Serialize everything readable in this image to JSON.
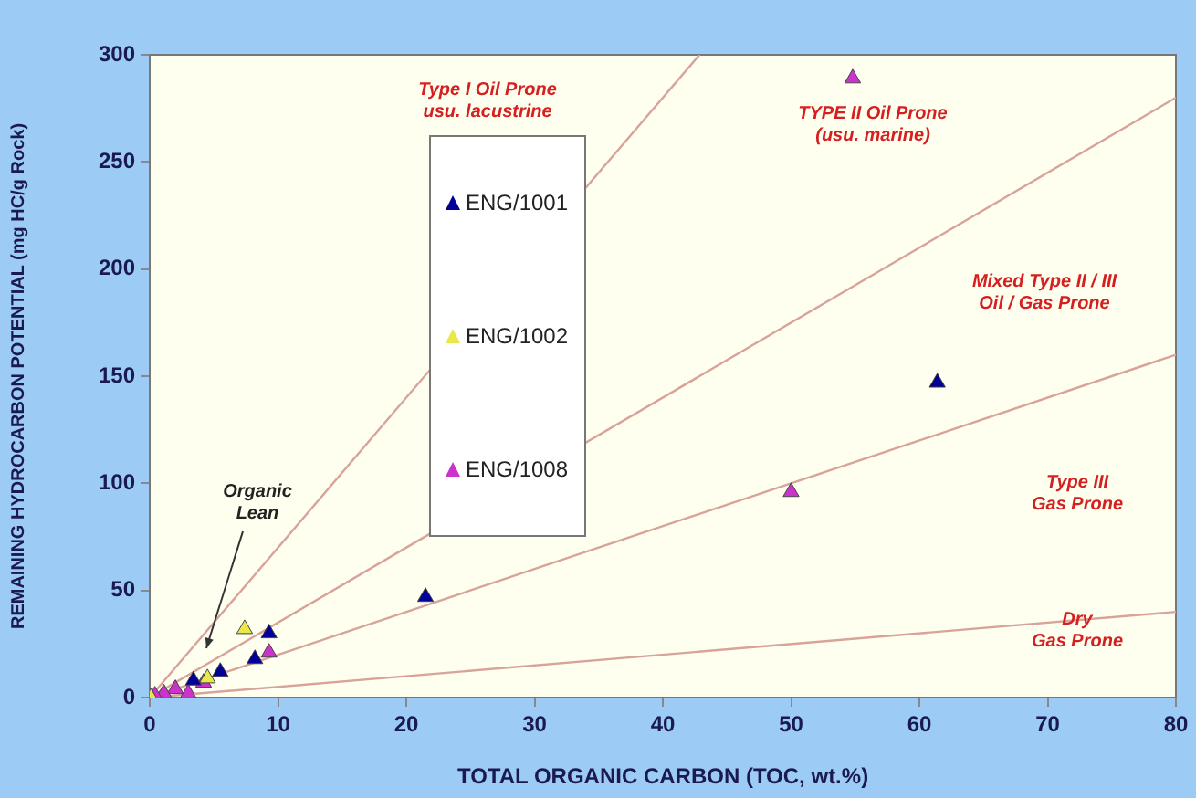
{
  "chart_data": {
    "type": "scatter",
    "xlabel": "TOTAL ORGANIC CARBON (TOC, wt.%)",
    "ylabel": "REMAINING HYDROCARBON POTENTIAL (mg HC/g Rock)",
    "xlim": [
      0,
      80
    ],
    "xticks": [
      0,
      10,
      20,
      30,
      40,
      50,
      60,
      70,
      80
    ],
    "ylim": [
      0,
      300
    ],
    "yticks": [
      0,
      50,
      100,
      150,
      200,
      250,
      300
    ],
    "grid": false,
    "legend": "top",
    "marker": "triangle",
    "series": [
      {
        "name": "ENG/1001",
        "color": "#000099",
        "x": [
          61.4,
          21.5,
          9.3,
          8.2,
          5.5,
          3.4
        ],
        "values": [
          147,
          47,
          30,
          18,
          12,
          8
        ]
      },
      {
        "name": "ENG/1002",
        "color": "#e8e84a",
        "x": [
          7.4,
          4.5,
          0.1
        ],
        "values": [
          32,
          9,
          0
        ]
      },
      {
        "name": "ENG/1008",
        "color": "#cc33cc",
        "x": [
          54.8,
          50,
          9.3,
          4.2,
          3,
          2,
          1.1,
          0.4
        ],
        "values": [
          289,
          96,
          21,
          7,
          2,
          4,
          2,
          1
        ]
      },
      {
        "type": "line",
        "marker": "none",
        "color": "#d8a39a",
        "x": [
          0,
          42.86
        ],
        "values": [
          0,
          300
        ]
      },
      {
        "type": "line",
        "marker": "none",
        "color": "#d8a39a",
        "x": [
          0,
          80
        ],
        "values": [
          0,
          280
        ]
      },
      {
        "type": "line",
        "marker": "none",
        "color": "#d8a39a",
        "x": [
          0,
          80
        ],
        "values": [
          0,
          160
        ]
      },
      {
        "type": "line",
        "marker": "none",
        "color": "#d8a39a",
        "x": [
          0,
          80
        ],
        "values": [
          0,
          40
        ]
      }
    ],
    "annotations": [
      "Type I Oil Prone\nusu. lacustrine",
      "TYPE II Oil Prone\n(usu. marine)",
      "Mixed Type II / III\nOil / Gas Prone",
      "Type III\nGas Prone",
      "Dry\nGas Prone",
      "Organic\nLean"
    ]
  }
}
